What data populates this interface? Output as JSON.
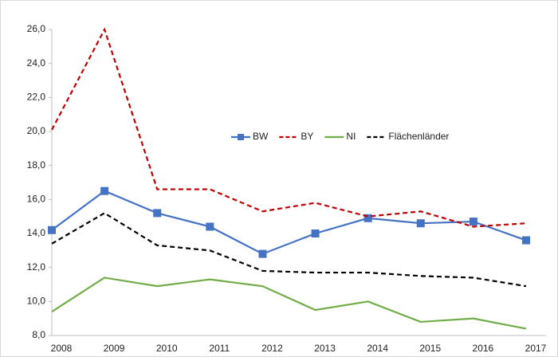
{
  "chart_data": {
    "type": "line",
    "categories": [
      "2008",
      "2009",
      "2010",
      "2011",
      "2012",
      "2013",
      "2014",
      "2015",
      "2016",
      "2017"
    ],
    "series": [
      {
        "name": "BW",
        "color": "#4472c4",
        "dash": false,
        "marker": "square",
        "values": [
          14.2,
          16.5,
          15.2,
          14.4,
          12.8,
          14.0,
          14.9,
          14.6,
          14.7,
          13.6
        ]
      },
      {
        "name": "BY",
        "color": "#c00000",
        "dash": true,
        "values": [
          20.1,
          26.0,
          16.6,
          16.6,
          15.3,
          15.8,
          15.0,
          15.3,
          14.4,
          14.6
        ]
      },
      {
        "name": "NI",
        "color": "#70ad47",
        "dash": false,
        "values": [
          9.4,
          11.4,
          10.9,
          11.3,
          10.9,
          9.5,
          10.0,
          8.8,
          9.0,
          8.4
        ]
      },
      {
        "name": "Flächenländer",
        "color": "#000000",
        "dash": true,
        "values": [
          13.4,
          15.2,
          13.3,
          13.0,
          11.8,
          11.7,
          11.7,
          11.5,
          11.4,
          10.9
        ]
      }
    ],
    "ylim": [
      8,
      26
    ],
    "yticks": [
      {
        "value": 8,
        "label": "8,0"
      },
      {
        "value": 10,
        "label": "10,0"
      },
      {
        "value": 12,
        "label": "12,0"
      },
      {
        "value": 14,
        "label": "14,0"
      },
      {
        "value": 16,
        "label": "16,0"
      },
      {
        "value": 18,
        "label": "18,0"
      },
      {
        "value": 20,
        "label": "20,0"
      },
      {
        "value": 22,
        "label": "22,0"
      },
      {
        "value": 24,
        "label": "24,0"
      },
      {
        "value": 26,
        "label": "26,0"
      }
    ],
    "legend": "center"
  }
}
